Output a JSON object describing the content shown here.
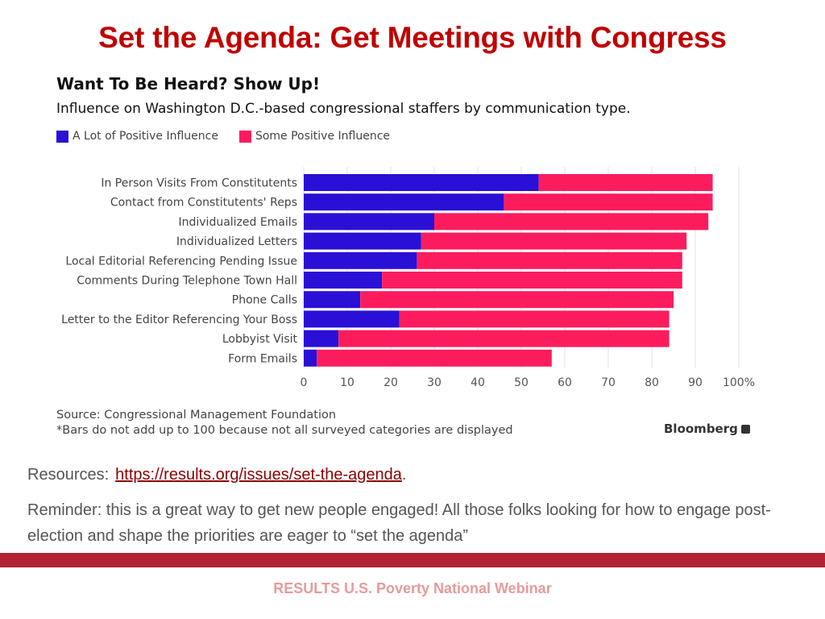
{
  "slide": {
    "title": "Set the Agenda: Get Meetings with Congress",
    "resources_label": "Resources:",
    "resources_link": "https://results.org/issues/set-the-agenda",
    "resources_suffix": ".",
    "reminder": "Reminder: this is a great way to get new people engaged! All those folks looking for how to engage post-election and shape the priorities are eager to “set the agenda”",
    "footer": "RESULTS U.S. Poverty National Webinar",
    "band_color": "#b22234",
    "title_color": "#c00000"
  },
  "chart_data": {
    "type": "bar",
    "orientation": "horizontal",
    "stacked": true,
    "title": "Want To Be Heard? Show Up!",
    "subtitle": "Influence on Washington D.C.-based congressional staffers by communication type.",
    "categories": [
      "In Person Visits From Constitutents",
      "Contact from Constitutents' Reps",
      "Individualized Emails",
      "Individualized Letters",
      "Local Editorial Referencing Pending Issue",
      "Comments During Telephone Town Hall",
      "Phone Calls",
      "Letter to the Editor Referencing Your Boss",
      "Lobbyist Visit",
      "Form Emails"
    ],
    "series": [
      {
        "name": "A Lot of Positive Influence",
        "color": "#2a0fd6",
        "values": [
          54,
          46,
          30,
          27,
          26,
          18,
          13,
          22,
          8,
          3
        ]
      },
      {
        "name": "Some Positive Influence",
        "color": "#fc1c5d",
        "values": [
          40,
          48,
          63,
          61,
          61,
          69,
          72,
          62,
          76,
          54
        ]
      }
    ],
    "xlim": [
      0,
      100
    ],
    "xticks": [
      "0",
      "10",
      "20",
      "30",
      "40",
      "50",
      "60",
      "70",
      "80",
      "90",
      "100%"
    ],
    "grid": true,
    "legend_position": "top-left",
    "source": "Source: Congressional Management Foundation",
    "note": "*Bars do not add up to 100 because not all surveyed categories are displayed",
    "brand": "Bloomberg"
  }
}
